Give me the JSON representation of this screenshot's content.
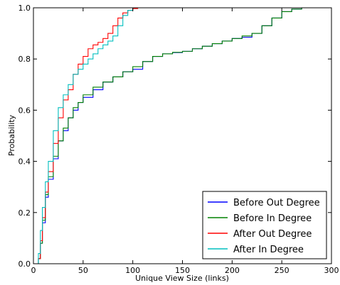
{
  "chart_data": {
    "type": "line",
    "xlabel": "Unique View Size (links)",
    "ylabel": "Probability",
    "xlim": [
      0,
      300
    ],
    "ylim": [
      0.0,
      1.0
    ],
    "xticks": [
      0,
      50,
      100,
      150,
      200,
      250,
      300
    ],
    "yticks": [
      0.0,
      0.2,
      0.4,
      0.6,
      0.8,
      1.0
    ],
    "xtick_labels": [
      "0",
      "50",
      "100",
      "150",
      "200",
      "250",
      "300"
    ],
    "ytick_labels": [
      "0.0",
      "0.2",
      "0.4",
      "0.6",
      "0.8",
      "1.0"
    ],
    "grid": false,
    "legend_position": "lower-right",
    "series": [
      {
        "name": "Before Out Degree",
        "color": "#0000ff",
        "x": [
          0,
          3,
          5,
          7,
          9,
          12,
          15,
          20,
          25,
          30,
          35,
          40,
          45,
          50,
          60,
          70,
          80,
          90,
          100,
          110,
          120,
          130,
          140,
          150,
          160,
          170,
          180,
          190,
          200,
          210,
          220,
          230,
          240,
          250,
          260,
          270
        ],
        "y": [
          0.0,
          0.0,
          0.02,
          0.08,
          0.16,
          0.26,
          0.33,
          0.41,
          0.48,
          0.52,
          0.57,
          0.6,
          0.63,
          0.65,
          0.68,
          0.71,
          0.73,
          0.75,
          0.76,
          0.79,
          0.81,
          0.82,
          0.825,
          0.83,
          0.84,
          0.85,
          0.86,
          0.87,
          0.88,
          0.885,
          0.9,
          0.93,
          0.96,
          0.985,
          0.995,
          1.0
        ]
      },
      {
        "name": "Before In Degree",
        "color": "#008000",
        "x": [
          0,
          3,
          5,
          7,
          9,
          12,
          15,
          20,
          25,
          30,
          35,
          40,
          45,
          50,
          60,
          70,
          80,
          90,
          100,
          110,
          120,
          130,
          140,
          150,
          160,
          170,
          180,
          190,
          200,
          210,
          220,
          230,
          240,
          250,
          260,
          270
        ],
        "y": [
          0.0,
          0.0,
          0.02,
          0.08,
          0.17,
          0.27,
          0.34,
          0.42,
          0.48,
          0.53,
          0.57,
          0.61,
          0.63,
          0.66,
          0.69,
          0.71,
          0.73,
          0.75,
          0.77,
          0.79,
          0.81,
          0.82,
          0.826,
          0.83,
          0.84,
          0.85,
          0.86,
          0.87,
          0.88,
          0.89,
          0.9,
          0.93,
          0.96,
          0.985,
          0.995,
          1.0
        ]
      },
      {
        "name": "After Out Degree",
        "color": "#ff0000",
        "x": [
          0,
          3,
          5,
          7,
          9,
          12,
          15,
          20,
          25,
          30,
          35,
          40,
          45,
          50,
          55,
          60,
          65,
          70,
          75,
          80,
          85,
          90,
          95,
          100,
          105,
          110
        ],
        "y": [
          0.0,
          0.0,
          0.02,
          0.09,
          0.18,
          0.28,
          0.36,
          0.47,
          0.57,
          0.64,
          0.68,
          0.74,
          0.78,
          0.81,
          0.84,
          0.855,
          0.865,
          0.88,
          0.9,
          0.93,
          0.96,
          0.98,
          0.99,
          0.997,
          1.0,
          1.0
        ]
      },
      {
        "name": "After In Degree",
        "color": "#00bfbf",
        "x": [
          0,
          3,
          5,
          7,
          9,
          12,
          15,
          20,
          25,
          30,
          35,
          40,
          45,
          50,
          55,
          60,
          65,
          70,
          75,
          80,
          85,
          90,
          95,
          100
        ],
        "y": [
          0.0,
          0.0,
          0.04,
          0.13,
          0.22,
          0.32,
          0.4,
          0.52,
          0.61,
          0.66,
          0.7,
          0.74,
          0.76,
          0.78,
          0.8,
          0.82,
          0.84,
          0.855,
          0.87,
          0.89,
          0.93,
          0.97,
          0.99,
          1.0
        ]
      }
    ]
  }
}
